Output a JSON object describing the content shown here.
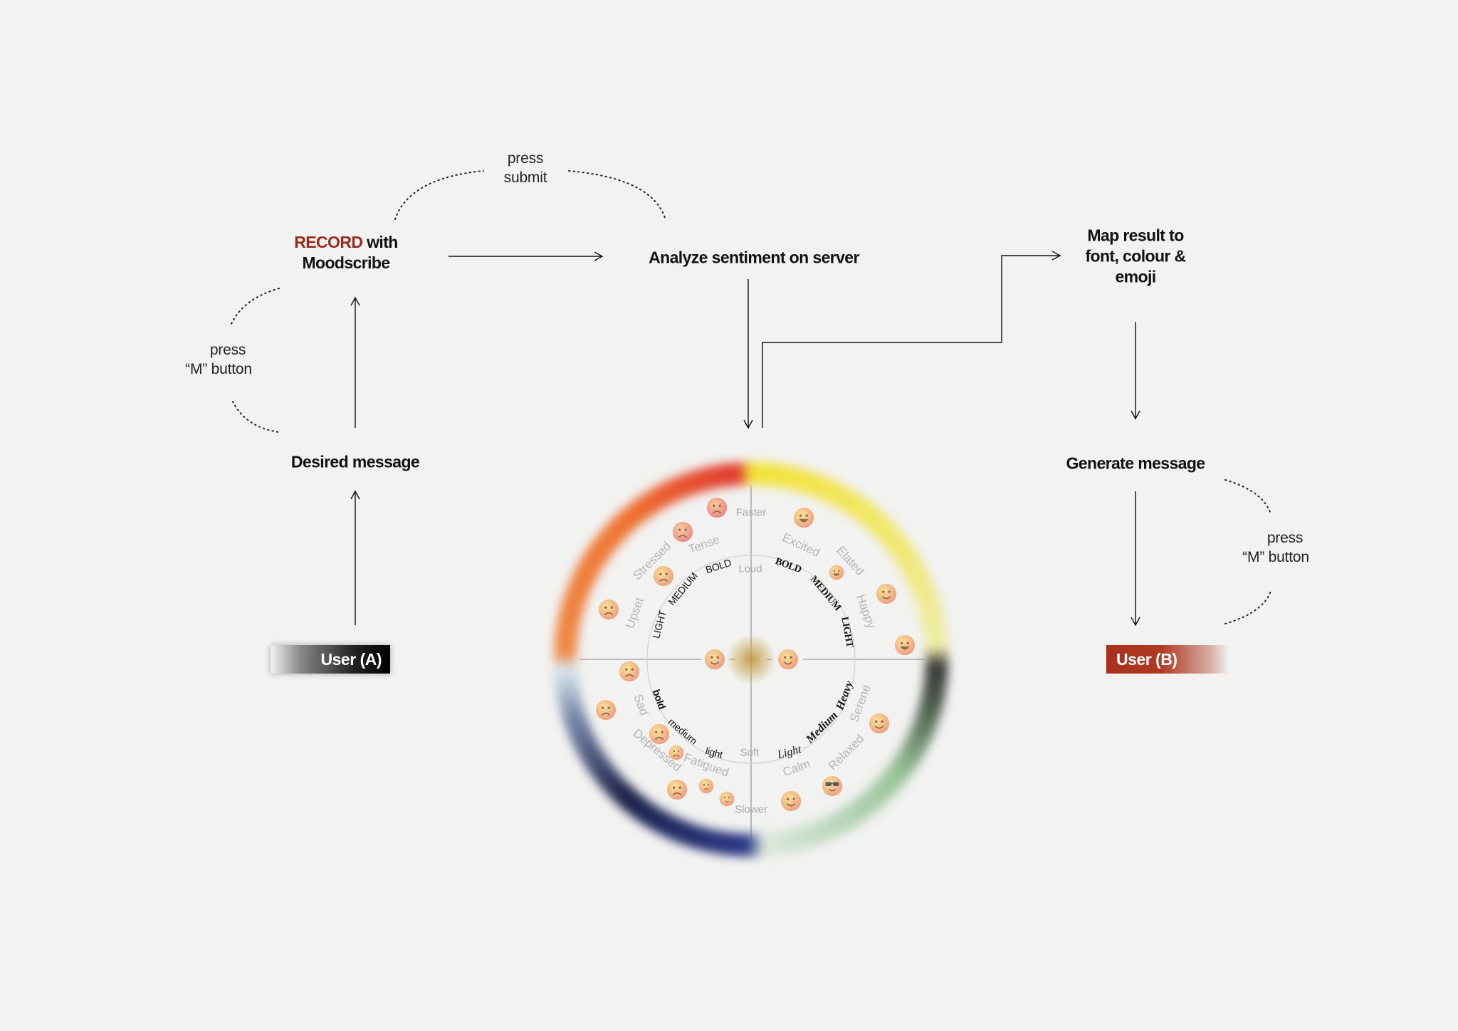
{
  "flow": {
    "record": {
      "highlight": "RECORD",
      "rest": " with",
      "line2": "Moodscribe"
    },
    "analyze": "Analyze sentiment on server",
    "map": {
      "line1": "Map result to",
      "line2": "font, colour &",
      "line3": "emoji"
    },
    "desired": "Desired message",
    "generate": "Generate message",
    "user_a": "User (A)",
    "user_b": "User (B)",
    "press_submit": {
      "line1": "press",
      "line2": "submit"
    },
    "press_m_left": {
      "line1": "press",
      "line2": "“M” button"
    },
    "press_m_right": {
      "line1": "press",
      "line2": "“M” button"
    }
  },
  "wheel": {
    "axes": {
      "top": "Faster",
      "inner_top": "Loud",
      "inner_bottom": "Soft",
      "bottom": "Slower"
    },
    "moods": {
      "excited": "Excited",
      "elated": "Elated",
      "happy": "Happy",
      "serene": "Serene",
      "relaxed": "Relaxed",
      "calm": "Calm",
      "tense": "Tense",
      "stressed": "Stressed",
      "upset": "Upset",
      "sad": "Sad",
      "depressed": "Depressed",
      "fatigued": "Fatigued"
    },
    "weights": {
      "top_left": [
        "LIGHT",
        "MEDIUM",
        "BOLD"
      ],
      "top_right": [
        "BOLD",
        "MEDIUM",
        "LIGHT"
      ],
      "bottom_left": [
        "bold",
        "medium",
        "light"
      ],
      "bottom_right": [
        "Light",
        "Medium",
        "Heavy"
      ]
    },
    "colors": {
      "top_left": [
        "#e03a30",
        "#ee7432"
      ],
      "top_right": [
        "#f2e236",
        "#eeeca8"
      ],
      "bottom_right": [
        "#3a3a3a",
        "#98c498"
      ],
      "bottom_left": [
        "#d8e6ee",
        "#1c2248",
        "#2c3a88"
      ],
      "record": "#9c2a1c",
      "user_b": "#a8301c"
    },
    "emojis": [
      "cursing-face",
      "angry-face",
      "triumph-face",
      "worried-face",
      "slightly-smiling-face",
      "blush-face",
      "zany-face",
      "joy-face",
      "partying-face",
      "grinning-face",
      "loudly-crying-face",
      "crying-face",
      "tired-face",
      "downcast-sweat-face",
      "disappointed-face",
      "yawning-face",
      "sleeping-face",
      "relieved-face",
      "sunglasses-face",
      "smiling-eyes-face"
    ]
  }
}
